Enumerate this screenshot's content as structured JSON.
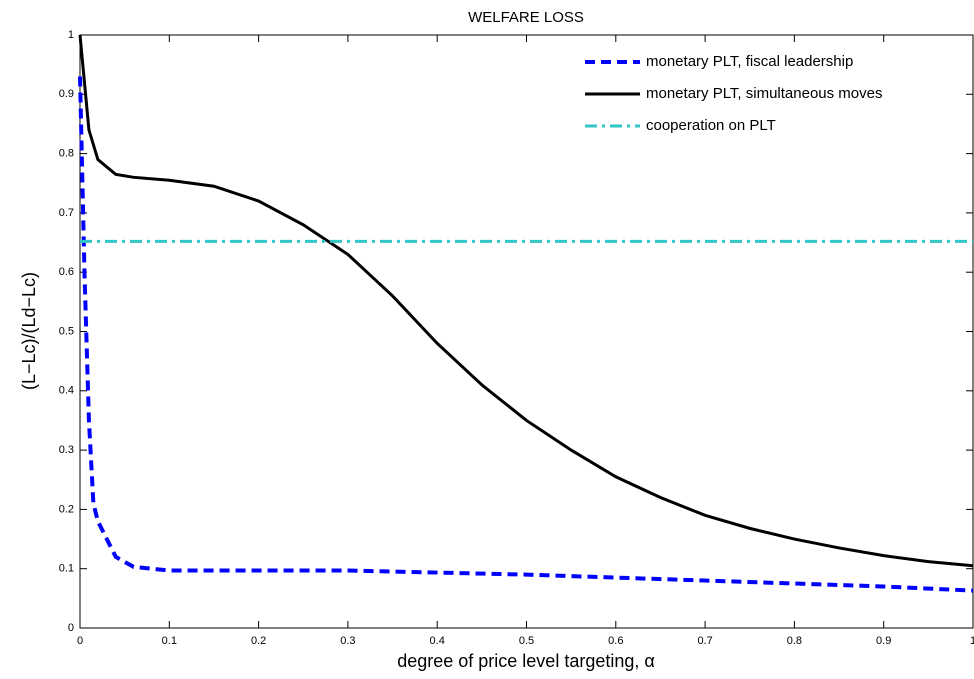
{
  "chart_data": {
    "type": "line",
    "title": "WELFARE LOSS",
    "xlabel": "degree of price level targeting, α",
    "ylabel": "(L−Lc)/(Ld−Lc)",
    "xlim": [
      0,
      1
    ],
    "ylim": [
      0,
      1
    ],
    "xticks": [
      0,
      0.1,
      0.2,
      0.3,
      0.4,
      0.5,
      0.6,
      0.7,
      0.8,
      0.9,
      1
    ],
    "yticks": [
      0,
      0.1,
      0.2,
      0.3,
      0.4,
      0.5,
      0.6,
      0.7,
      0.8,
      0.9,
      1
    ],
    "grid": false,
    "legend": "upper right",
    "series": [
      {
        "name": "monetary PLT, fiscal leadership",
        "color": "#0000ff",
        "style": "dashed",
        "x": [
          0,
          0.005,
          0.01,
          0.015,
          0.02,
          0.03,
          0.04,
          0.06,
          0.1,
          0.3,
          0.5,
          0.7,
          0.9,
          1
        ],
        "values": [
          0.93,
          0.6,
          0.35,
          0.21,
          0.18,
          0.15,
          0.12,
          0.103,
          0.097,
          0.097,
          0.09,
          0.08,
          0.07,
          0.063
        ]
      },
      {
        "name": "monetary PLT, simultaneous moves",
        "color": "#000000",
        "style": "solid",
        "x": [
          0,
          0.01,
          0.02,
          0.04,
          0.06,
          0.1,
          0.15,
          0.2,
          0.25,
          0.3,
          0.35,
          0.4,
          0.45,
          0.5,
          0.55,
          0.6,
          0.65,
          0.7,
          0.75,
          0.8,
          0.85,
          0.9,
          0.95,
          1
        ],
        "values": [
          1.0,
          0.84,
          0.79,
          0.765,
          0.76,
          0.755,
          0.745,
          0.72,
          0.68,
          0.63,
          0.56,
          0.48,
          0.41,
          0.35,
          0.3,
          0.255,
          0.22,
          0.19,
          0.168,
          0.15,
          0.135,
          0.122,
          0.112,
          0.105
        ]
      },
      {
        "name": "cooperation on PLT",
        "color": "#33c6c6",
        "style": "dashdot",
        "x": [
          0,
          1
        ],
        "values": [
          0.652,
          0.652
        ]
      }
    ]
  }
}
